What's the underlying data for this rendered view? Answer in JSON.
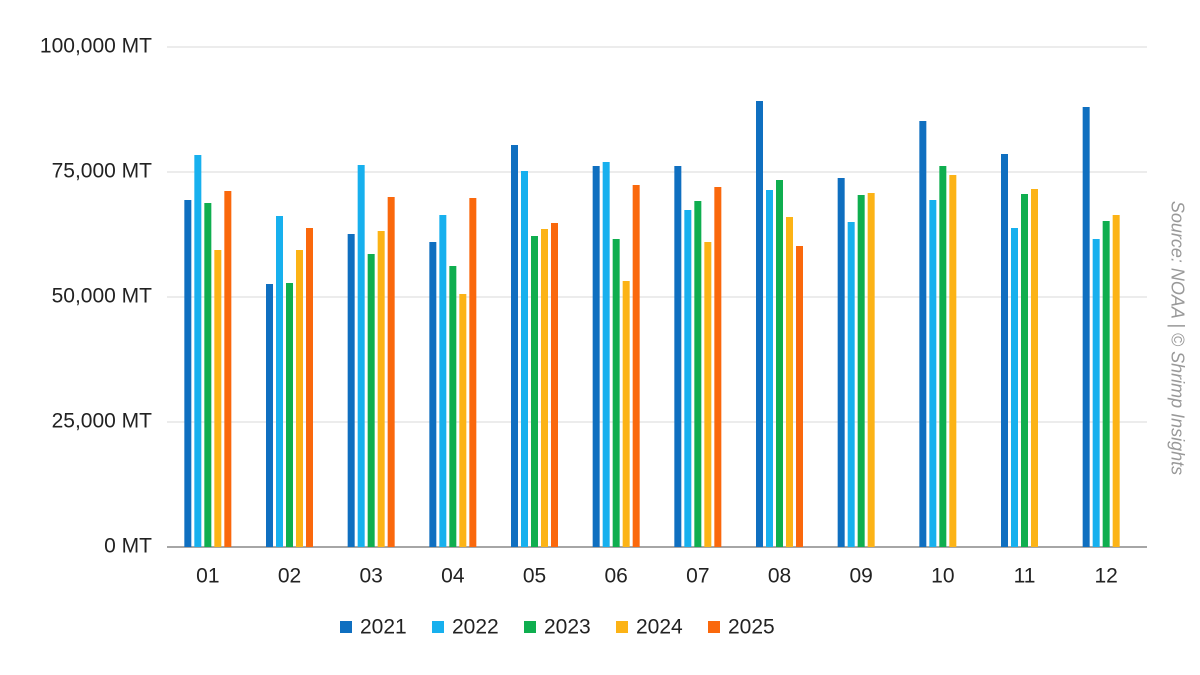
{
  "chart_data": {
    "type": "bar",
    "source": "Source: NOAA | © Shrimp Insights",
    "categories": [
      "01",
      "02",
      "03",
      "04",
      "05",
      "06",
      "07",
      "08",
      "09",
      "10",
      "11",
      "12"
    ],
    "series": [
      {
        "name": "2021",
        "color": "#0f6fc0",
        "values": [
          69400,
          52600,
          62600,
          61000,
          80400,
          76200,
          76200,
          89200,
          73800,
          85200,
          78600,
          88000
        ]
      },
      {
        "name": "2022",
        "color": "#17b0ee",
        "values": [
          78400,
          66200,
          76400,
          66400,
          75200,
          77000,
          67400,
          71400,
          65000,
          69400,
          63800,
          61600
        ]
      },
      {
        "name": "2023",
        "color": "#0fae4f",
        "values": [
          68800,
          52800,
          58600,
          56200,
          62200,
          61600,
          69200,
          73400,
          70400,
          76200,
          70600,
          65200
        ]
      },
      {
        "name": "2024",
        "color": "#fcb316",
        "values": [
          59400,
          59400,
          63200,
          50600,
          63600,
          53200,
          61000,
          66000,
          70800,
          74400,
          71600,
          66400
        ]
      },
      {
        "name": "2025",
        "color": "#fa680c",
        "values": [
          71200,
          63800,
          70000,
          69800,
          64800,
          72400,
          72000,
          60200,
          null,
          null,
          null,
          null
        ]
      }
    ],
    "ylim": [
      0,
      100000
    ],
    "yticks": [
      {
        "value": 0,
        "label": "0 MT"
      },
      {
        "value": 25000,
        "label": "25,000 MT"
      },
      {
        "value": 50000,
        "label": "50,000 MT"
      },
      {
        "value": 75000,
        "label": "75,000 MT"
      },
      {
        "value": 100000,
        "label": "100,000 MT"
      }
    ],
    "grid": true,
    "legend": "bottom"
  }
}
